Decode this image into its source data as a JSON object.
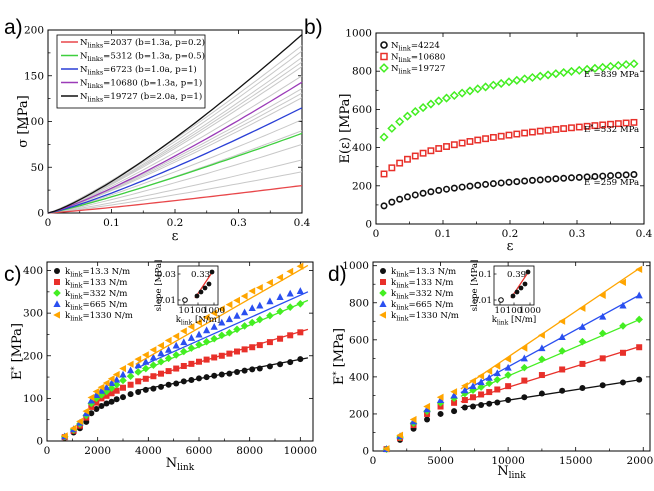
{
  "panels": [
    {
      "label": "a)"
    },
    {
      "label": "b)"
    },
    {
      "label": "c)"
    },
    {
      "label": "d)"
    }
  ],
  "chart_data": [
    {
      "id": "a",
      "type": "line",
      "xlabel": "ε",
      "ylabel": "σ [MPa]",
      "xlim": [
        0,
        0.4
      ],
      "ylim": [
        0,
        200
      ],
      "xticks": [
        0,
        0.1,
        0.2,
        0.3,
        0.4
      ],
      "xtick_labels": [
        "0",
        "0.1",
        "0.2",
        "0.3",
        "0.4"
      ],
      "yticks": [
        0,
        50,
        100,
        150,
        200
      ],
      "ytick_labels": [
        "0",
        "50",
        "100",
        "150",
        "200"
      ],
      "legend_position": "top-left",
      "background_series": {
        "name": "other networks",
        "color": "#c8c8c8",
        "end_values": [
          45,
          58,
          75,
          90,
          102,
          126,
          131,
          136,
          150,
          160,
          165,
          170,
          177,
          183
        ]
      },
      "series": [
        {
          "name": "N_link=2037 (b=1.3a, p=0.2)",
          "n": "2037",
          "rest": "=2037 (b=1.3a, p=0.2)",
          "color": "#e8474a",
          "end_value": 30,
          "exponent": 1.15
        },
        {
          "name": "N_link=5312 (b=1.3a, p=0.5)",
          "n": "5312",
          "rest": "=5312 (b=1.3a, p=0.5)",
          "color": "#3ecf3e",
          "end_value": 87,
          "exponent": 1.15
        },
        {
          "name": "N_link=6723 (b=1.0a, p=1)",
          "n": "6723",
          "rest": "=6723 (b=1.0a, p=1)",
          "color": "#2a3fd6",
          "end_value": 115,
          "exponent": 1.2
        },
        {
          "name": "N_link=10680 (b=1.3a, p=1)",
          "n": "10680",
          "rest": "=10680 (b=1.3a, p=1)",
          "color": "#9b3bb8",
          "end_value": 143,
          "exponent": 1.2
        },
        {
          "name": "N_link=19727 (b=2.0a, p=1)",
          "n": "19727",
          "rest": "=19727 (b=2.0a, p=1)",
          "color": "#111111",
          "end_value": 195,
          "exponent": 1.25
        }
      ]
    },
    {
      "id": "b",
      "type": "scatter",
      "xlabel": "ε",
      "ylabel": "E(ε) [MPa]",
      "xlim": [
        0,
        0.4
      ],
      "ylim": [
        0,
        1000
      ],
      "xticks": [
        0,
        0.1,
        0.2,
        0.3,
        0.4
      ],
      "xtick_labels": [
        "0",
        "0.1",
        "0.2",
        "0.3",
        "0.4"
      ],
      "yticks": [
        0,
        200,
        400,
        600,
        800,
        1000
      ],
      "ytick_labels": [
        "0",
        "200",
        "400",
        "600",
        "800",
        "1000"
      ],
      "legend_position": "top-left",
      "x_range": [
        0.012,
        0.385
      ],
      "n_points": 33,
      "series": [
        {
          "name": "N_link=4224",
          "n": "4224",
          "rest": "=4224",
          "color": "#111111",
          "marker": "circle",
          "start_value": 95,
          "plateau_value": 259,
          "annotation": "E*=259 MPa",
          "ann_text": "=259 MPa"
        },
        {
          "name": "N_link=10680",
          "n": "10680",
          "rest": "=10680",
          "color": "#e8302a",
          "marker": "square",
          "start_value": 262,
          "plateau_value": 532,
          "annotation": "E*=532 MPa",
          "ann_text": "=532 MPa"
        },
        {
          "name": "N_link=19727",
          "n": "19727",
          "rest": "=19727",
          "color": "#44ee22",
          "marker": "diamond",
          "start_value": 455,
          "plateau_value": 839,
          "annotation": "E*=839 MPa",
          "ann_text": "=839 MPa"
        }
      ]
    },
    {
      "id": "c",
      "type": "scatter",
      "xlabel": "N_link",
      "ylabel": "E* [MPa]",
      "xlim": [
        0,
        10500
      ],
      "ylim": [
        0,
        420
      ],
      "xticks": [
        0,
        2000,
        4000,
        6000,
        8000,
        10000
      ],
      "xtick_labels": [
        "0",
        "2000",
        "4000",
        "6000",
        "8000",
        "10000"
      ],
      "yticks": [
        0,
        100,
        200,
        300,
        400
      ],
      "ytick_labels": [
        "0",
        "100",
        "200",
        "300",
        "400"
      ],
      "legend_position": "top-left",
      "x": [
        700,
        1050,
        1300,
        1550,
        1750,
        1950,
        2150,
        2350,
        2550,
        2750,
        3000,
        3300,
        3600,
        3900,
        4200,
        4500,
        4800,
        5100,
        5400,
        5700,
        6000,
        6300,
        6600,
        6900,
        7200,
        7500,
        7800,
        8100,
        8400,
        8800,
        9200,
        9600,
        10000
      ],
      "fit_x_range": [
        3500,
        10300
      ],
      "series": [
        {
          "name": "k_link=13.3 N/m",
          "k": "=13.3 N/m",
          "color": "#111111",
          "marker": "circle",
          "values": [
            8,
            20,
            30,
            45,
            65,
            75,
            82,
            88,
            92,
            98,
            103,
            110,
            115,
            120,
            123,
            127,
            132,
            135,
            140,
            143,
            147,
            150,
            153,
            156,
            158,
            162,
            165,
            168,
            170,
            175,
            180,
            185,
            192
          ],
          "fit": [
            118,
            195
          ]
        },
        {
          "name": "k_link=133 N/m",
          "k": "=133 N/m",
          "color": "#e8302a",
          "marker": "square",
          "values": [
            9,
            24,
            36,
            55,
            80,
            90,
            100,
            106,
            112,
            118,
            125,
            132,
            140,
            146,
            152,
            158,
            164,
            170,
            176,
            181,
            186,
            191,
            196,
            200,
            205,
            210,
            215,
            220,
            225,
            232,
            240,
            248,
            255
          ],
          "fit": [
            140,
            262
          ]
        },
        {
          "name": "k_link=332 N/m",
          "k": "=332 N/m",
          "color": "#44ee22",
          "marker": "diamond",
          "values": [
            10,
            26,
            40,
            60,
            88,
            100,
            108,
            116,
            124,
            132,
            142,
            152,
            162,
            170,
            178,
            186,
            194,
            202,
            210,
            218,
            226,
            233,
            240,
            248,
            254,
            262,
            270,
            278,
            285,
            294,
            304,
            314,
            322
          ],
          "fit": [
            158,
            330
          ]
        },
        {
          "name": "k_link=665 N/m",
          "k": "=665 N/m",
          "color": "#2a4ff0",
          "marker": "triangle-up",
          "values": [
            11,
            28,
            43,
            65,
            95,
            108,
            118,
            126,
            136,
            144,
            156,
            166,
            178,
            186,
            196,
            206,
            214,
            224,
            232,
            242,
            250,
            260,
            268,
            278,
            286,
            294,
            302,
            312,
            318,
            328,
            338,
            346,
            352
          ],
          "fit": [
            170,
            350
          ]
        },
        {
          "name": "k_link=1330 N/m",
          "k": "=1330 N/m",
          "color": "#ffa500",
          "marker": "triangle-left",
          "values": [
            12,
            30,
            46,
            70,
            102,
            116,
            126,
            136,
            146,
            156,
            170,
            180,
            192,
            202,
            214,
            224,
            236,
            246,
            258,
            268,
            278,
            290,
            300,
            310,
            320,
            330,
            340,
            352,
            360,
            372,
            384,
            398,
            410
          ],
          "fit": [
            180,
            412
          ]
        }
      ],
      "inset": {
        "xlabel": "k_link [N/m]",
        "ylabel": "slope [MPa]",
        "xtick_labels": [
          "10",
          "100",
          "1000"
        ],
        "ytick_labels": [
          "0.01",
          "0.03"
        ],
        "annotation": "0.33",
        "annotation_color": "#e8302a"
      }
    },
    {
      "id": "d",
      "type": "scatter",
      "xlabel": "N_link",
      "ylabel": "E* [MPa]",
      "xlim": [
        0,
        20500
      ],
      "ylim": [
        0,
        1020
      ],
      "xticks": [
        0,
        5000,
        10000,
        15000,
        20000
      ],
      "xtick_labels": [
        "0",
        "5000",
        "10000",
        "15000",
        "20000"
      ],
      "yticks": [
        0,
        200,
        400,
        600,
        800,
        1000
      ],
      "ytick_labels": [
        "0",
        "200",
        "400",
        "600",
        "800",
        "1000"
      ],
      "legend_position": "top-left",
      "x": [
        1000,
        2000,
        3000,
        4000,
        5000,
        6000,
        6800,
        7400,
        8000,
        8600,
        9200,
        10000,
        11200,
        12500,
        14000,
        15500,
        17000,
        18500,
        19700
      ],
      "fit_x_range": [
        6500,
        19800
      ],
      "series": [
        {
          "name": "k_link=13.3 N/m",
          "k": "=13.3 N/m",
          "color": "#111111",
          "marker": "circle",
          "values": [
            10,
            60,
            120,
            170,
            200,
            215,
            235,
            240,
            248,
            255,
            262,
            275,
            290,
            310,
            325,
            340,
            355,
            370,
            385
          ],
          "fit": [
            235,
            385
          ]
        },
        {
          "name": "k_link=133 N/m",
          "k": "=133 N/m",
          "color": "#e8302a",
          "marker": "square",
          "values": [
            10,
            70,
            140,
            200,
            240,
            260,
            275,
            290,
            305,
            318,
            332,
            350,
            380,
            410,
            440,
            470,
            500,
            530,
            560
          ],
          "fit": [
            265,
            565
          ]
        },
        {
          "name": "k_link=332 N/m",
          "k": "=332 N/m",
          "color": "#44ee22",
          "marker": "diamond",
          "values": [
            10,
            75,
            150,
            215,
            260,
            285,
            310,
            328,
            345,
            365,
            385,
            410,
            450,
            495,
            540,
            590,
            635,
            675,
            710
          ],
          "fit": [
            295,
            712
          ]
        },
        {
          "name": "k_link=665 N/m",
          "k": "=665 N/m",
          "color": "#2a4ff0",
          "marker": "triangle-up",
          "values": [
            11,
            80,
            160,
            225,
            275,
            300,
            328,
            350,
            372,
            395,
            420,
            450,
            500,
            555,
            615,
            670,
            725,
            785,
            840
          ],
          "fit": [
            315,
            845
          ]
        },
        {
          "name": "k_link=1330 N/m",
          "k": "=1330 N/m",
          "color": "#ffa500",
          "marker": "triangle-left",
          "values": [
            12,
            85,
            170,
            240,
            290,
            320,
            352,
            378,
            404,
            430,
            458,
            495,
            555,
            625,
            700,
            770,
            840,
            910,
            980
          ],
          "fit": [
            335,
            990
          ]
        }
      ],
      "inset": {
        "xlabel": "k_link [N/m]",
        "ylabel": "slope [MPa]",
        "xtick_labels": [
          "10",
          "100",
          "1000"
        ],
        "ytick_labels": [
          "0.01",
          "0.1"
        ],
        "annotation": "0.39",
        "annotation_color": "#e8302a"
      }
    }
  ]
}
